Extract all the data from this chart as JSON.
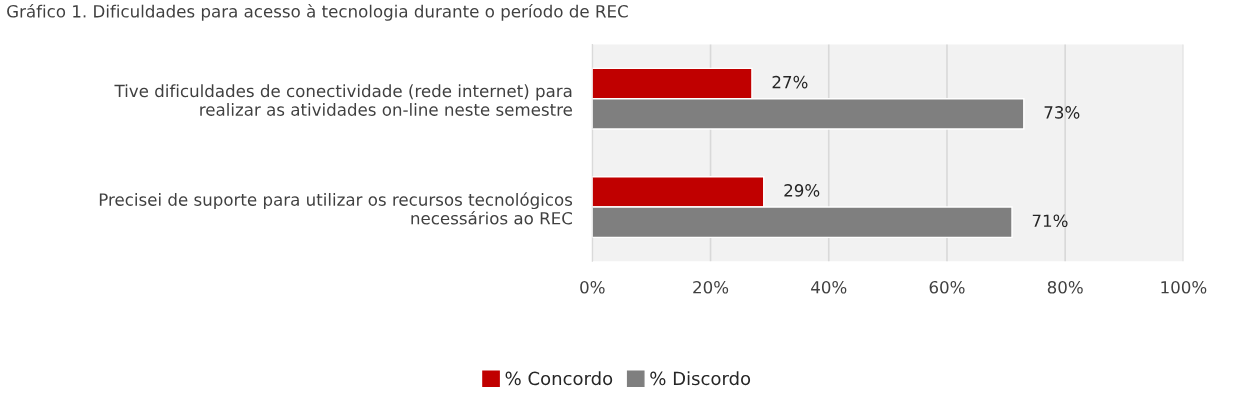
{
  "chart_data": {
    "type": "bar",
    "orientation": "horizontal",
    "title": "Gráfico 1. Dificuldades para acesso à tecnologia durante o período de REC",
    "categories": [
      "Tive dificuldades de conectividade (rede internet) para\nrealizar as atividades on-line neste semestre",
      "Precisei de suporte para utilizar os recursos tecnológicos\nnecessários ao REC"
    ],
    "series": [
      {
        "name": "% Concordo",
        "color": "#c00000",
        "values": [
          27,
          29
        ],
        "value_labels": [
          "27%",
          "29%"
        ]
      },
      {
        "name": "% Discordo",
        "color": "#7f7f7f",
        "values": [
          73,
          71
        ],
        "value_labels": [
          "73%",
          "71%"
        ]
      }
    ],
    "xlim": [
      0,
      100
    ],
    "xticks": [
      {
        "value": 0,
        "label": "0%"
      },
      {
        "value": 20,
        "label": "20%"
      },
      {
        "value": 40,
        "label": "40%"
      },
      {
        "value": 60,
        "label": "60%"
      },
      {
        "value": 80,
        "label": "80%"
      },
      {
        "value": 100,
        "label": "100%"
      }
    ],
    "grid": "x",
    "legend": "bottom"
  }
}
